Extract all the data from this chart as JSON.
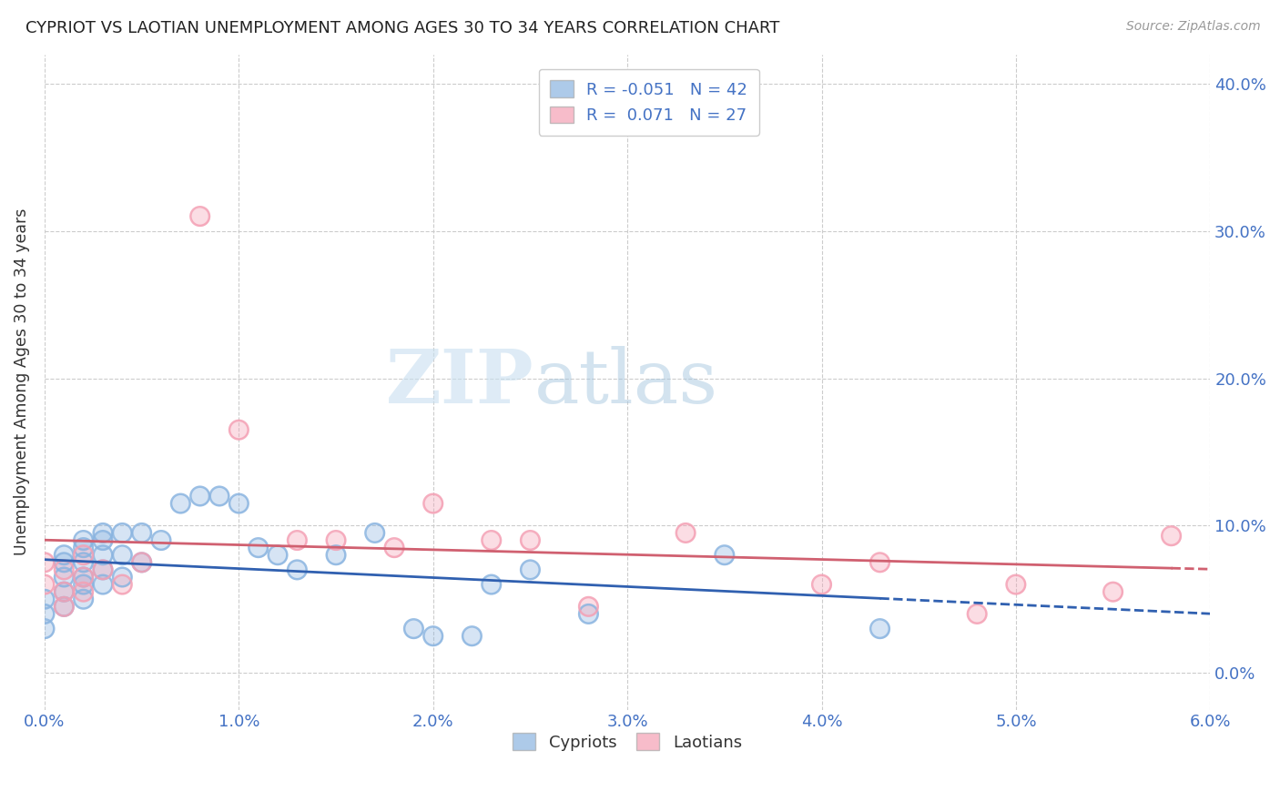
{
  "title": "CYPRIOT VS LAOTIAN UNEMPLOYMENT AMONG AGES 30 TO 34 YEARS CORRELATION CHART",
  "source": "Source: ZipAtlas.com",
  "ylabel_label": "Unemployment Among Ages 30 to 34 years",
  "x_min": 0.0,
  "x_max": 0.06,
  "y_min": -0.025,
  "y_max": 0.42,
  "cypriot_color": "#8ab4e0",
  "laotian_color": "#f4a0b4",
  "cypriot_R": -0.051,
  "cypriot_N": 42,
  "laotian_R": 0.071,
  "laotian_N": 27,
  "cypriot_line_color": "#3060b0",
  "laotian_line_color": "#d06070",
  "watermark_zip": "ZIP",
  "watermark_atlas": "atlas",
  "cypriot_x": [
    0.0,
    0.0,
    0.0,
    0.001,
    0.001,
    0.001,
    0.001,
    0.001,
    0.002,
    0.002,
    0.002,
    0.002,
    0.002,
    0.002,
    0.003,
    0.003,
    0.003,
    0.003,
    0.003,
    0.004,
    0.004,
    0.004,
    0.005,
    0.005,
    0.006,
    0.007,
    0.008,
    0.009,
    0.01,
    0.011,
    0.012,
    0.013,
    0.015,
    0.017,
    0.019,
    0.02,
    0.022,
    0.023,
    0.025,
    0.028,
    0.035,
    0.043
  ],
  "cypriot_y": [
    0.05,
    0.04,
    0.03,
    0.08,
    0.075,
    0.065,
    0.055,
    0.045,
    0.09,
    0.085,
    0.075,
    0.065,
    0.06,
    0.05,
    0.095,
    0.09,
    0.08,
    0.07,
    0.06,
    0.095,
    0.08,
    0.065,
    0.095,
    0.075,
    0.09,
    0.115,
    0.12,
    0.12,
    0.115,
    0.085,
    0.08,
    0.07,
    0.08,
    0.095,
    0.03,
    0.025,
    0.025,
    0.06,
    0.07,
    0.04,
    0.08,
    0.03
  ],
  "laotian_x": [
    0.0,
    0.0,
    0.001,
    0.001,
    0.001,
    0.002,
    0.002,
    0.002,
    0.003,
    0.004,
    0.005,
    0.008,
    0.01,
    0.013,
    0.015,
    0.018,
    0.02,
    0.023,
    0.025,
    0.028,
    0.033,
    0.04,
    0.043,
    0.048,
    0.05,
    0.055,
    0.058
  ],
  "laotian_y": [
    0.075,
    0.06,
    0.07,
    0.055,
    0.045,
    0.08,
    0.065,
    0.055,
    0.07,
    0.06,
    0.075,
    0.31,
    0.165,
    0.09,
    0.09,
    0.085,
    0.115,
    0.09,
    0.09,
    0.045,
    0.095,
    0.06,
    0.075,
    0.04,
    0.06,
    0.055,
    0.093
  ]
}
